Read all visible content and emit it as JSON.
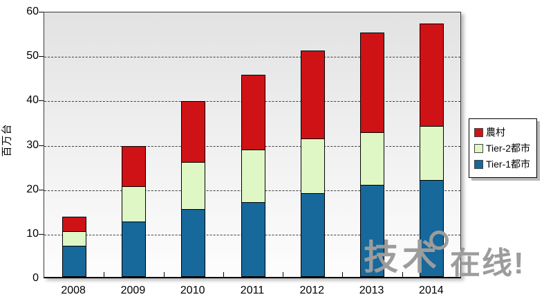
{
  "chart_data": {
    "type": "bar",
    "stacked": true,
    "title": "",
    "xlabel": "",
    "ylabel": "百万台",
    "categories": [
      "2008",
      "2009",
      "2010",
      "2011",
      "2012",
      "2013",
      "2014"
    ],
    "series": [
      {
        "name": "Tier-1都市",
        "color": "#17689b",
        "values": [
          7.0,
          12.5,
          15.3,
          16.9,
          18.8,
          20.7,
          21.8
        ]
      },
      {
        "name": "Tier-2都市",
        "color": "#dff7c5",
        "values": [
          3.3,
          7.9,
          10.5,
          11.8,
          12.3,
          11.8,
          12.2
        ]
      },
      {
        "name": "農村",
        "color": "#cf1215",
        "values": [
          3.2,
          9.1,
          13.8,
          16.8,
          19.9,
          22.5,
          23.0
        ]
      }
    ],
    "totals": [
      13.5,
      29.5,
      39.6,
      45.5,
      51.0,
      55.0,
      57.0
    ],
    "ylim": [
      0,
      60
    ],
    "yticks": [
      "0",
      "10",
      "20",
      "30",
      "40",
      "50",
      "60"
    ],
    "grid": true,
    "gridline_style": "dashed",
    "legend_position": "right",
    "plot_background": "gray-to-white vertical gradient"
  },
  "legend": {
    "items": [
      {
        "label": "農村",
        "color": "#cf1215"
      },
      {
        "label": "Tier-2都市",
        "color": "#dff7c5"
      },
      {
        "label": "Tier-1都市",
        "color": "#17689b"
      }
    ]
  },
  "watermark": {
    "text_left": "技术",
    "text_right": "在线!",
    "color": "#9c9c9c"
  }
}
